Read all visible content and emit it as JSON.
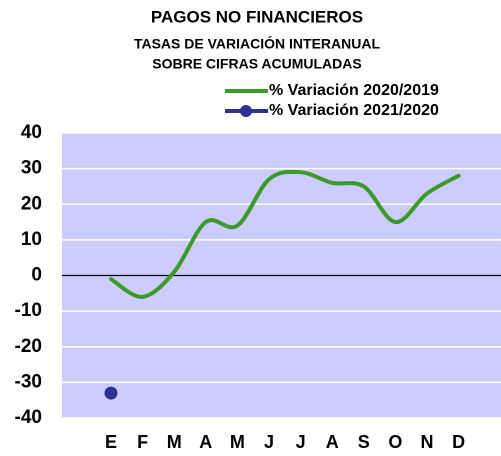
{
  "chart_data": {
    "type": "line",
    "title": "PAGOS NO FINANCIEROS",
    "subtitle": [
      "TASAS DE VARIACIÓN INTERANUAL",
      "SOBRE CIFRAS ACUMULADAS"
    ],
    "categories": [
      "E",
      "F",
      "M",
      "A",
      "M",
      "J",
      "J",
      "A",
      "S",
      "O",
      "N",
      "D"
    ],
    "series": [
      {
        "name": "% Variación 2020/2019",
        "color": "#3a9a2a",
        "values": [
          -1,
          -6,
          1,
          15,
          14,
          27,
          29,
          26,
          25,
          15,
          23,
          28
        ]
      },
      {
        "name": "% Variación 2021/2020",
        "color": "#2e3192",
        "values": [
          -33,
          null,
          null,
          null,
          null,
          null,
          null,
          null,
          null,
          null,
          null,
          null
        ]
      }
    ],
    "ylim": [
      -40,
      40
    ],
    "yticks": [
      -40,
      -30,
      -20,
      -10,
      0,
      10,
      20,
      30,
      40
    ],
    "grid": true,
    "background": "#ccccff",
    "legend": "top-right"
  }
}
